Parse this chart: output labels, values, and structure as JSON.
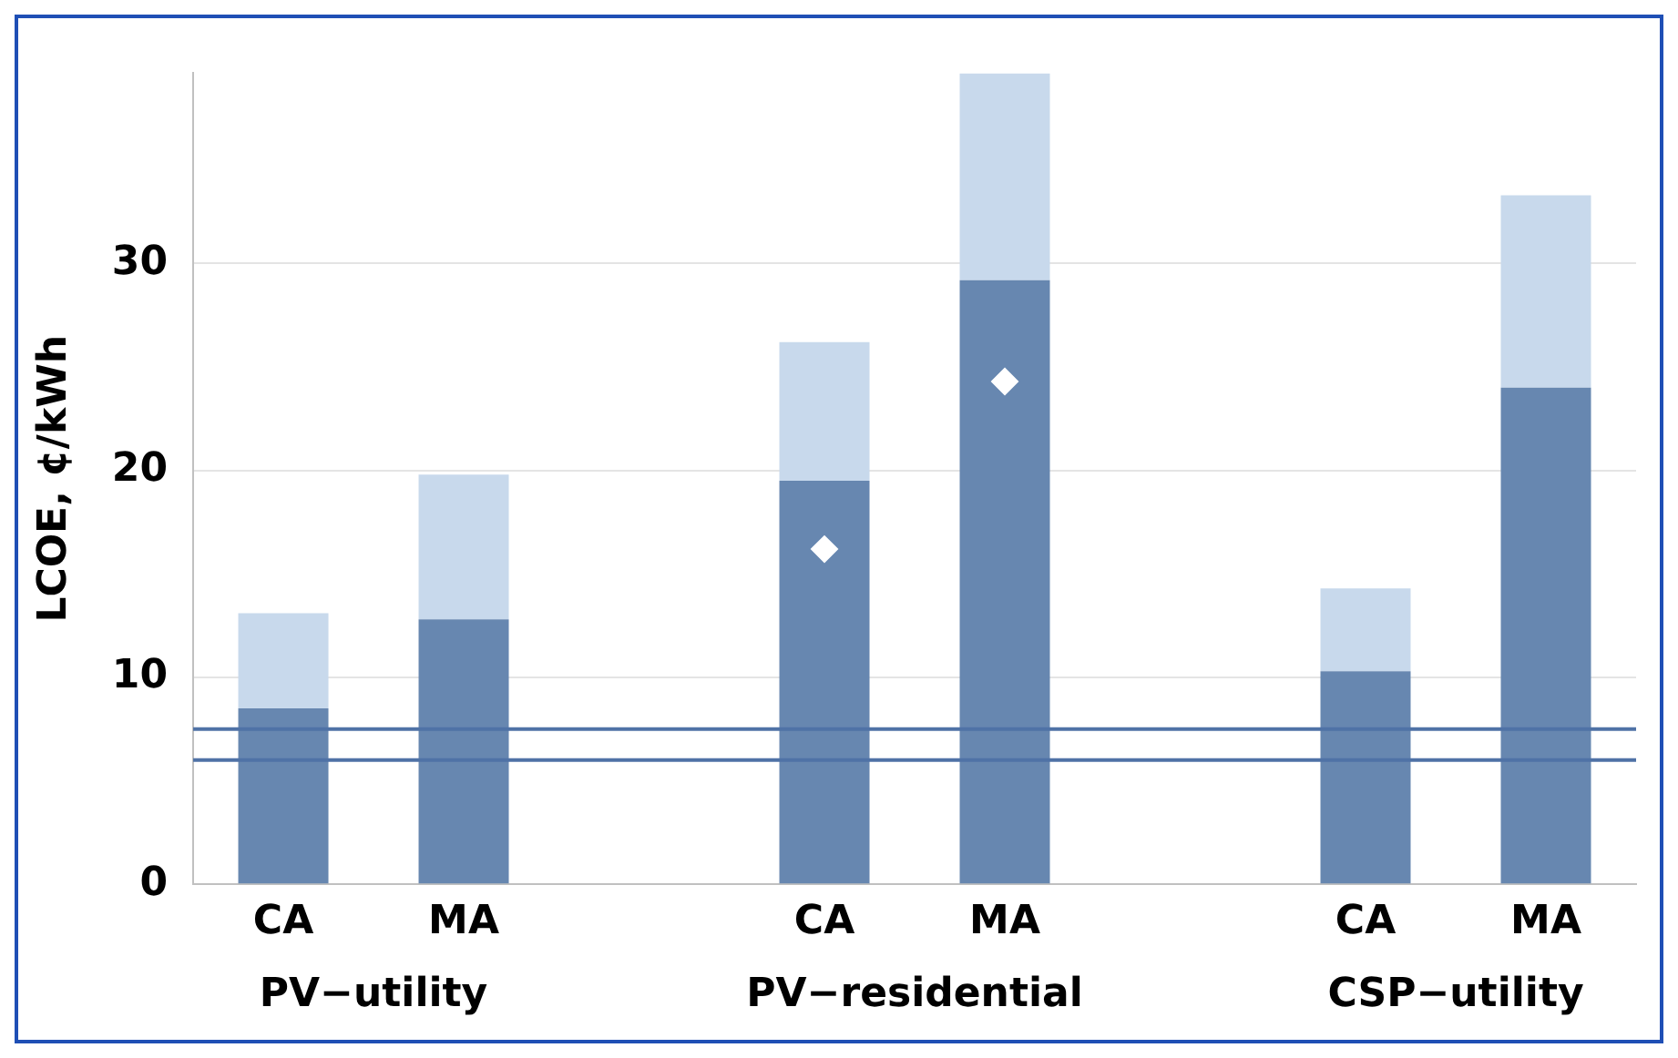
{
  "chart_data": {
    "type": "bar",
    "stacked": true,
    "ylabel": "LCOE, ¢/kWh",
    "categories": [
      "CA",
      "MA",
      null,
      "CA",
      "MA",
      null,
      "CA",
      "MA"
    ],
    "series": [
      {
        "color": "#6787b0",
        "values": [
          8.5,
          12.8,
          null,
          19.5,
          29.2,
          null,
          10.3,
          24.0
        ]
      },
      {
        "color": "#c8d9ec",
        "values": [
          4.6,
          7.0,
          null,
          6.7,
          10.0,
          null,
          4.0,
          9.3
        ]
      },
      {
        "type": "scatter",
        "color": "#ffffff",
        "marker": "diamond",
        "values": [
          null,
          null,
          null,
          16.2,
          24.3,
          null,
          null,
          null
        ]
      }
    ],
    "ylim": [
      0,
      39.2
    ],
    "yticks": [
      0,
      10,
      20,
      30
    ],
    "grid": "y",
    "legend": false,
    "ref_lines": [
      {
        "axis": "y",
        "value": 7.5,
        "color": "#4f72a6"
      },
      {
        "axis": "y",
        "value": 6.0,
        "color": "#4f72a6"
      }
    ],
    "annotations": [
      "PV−utility",
      "PV−residential",
      "CSP−utility"
    ]
  }
}
